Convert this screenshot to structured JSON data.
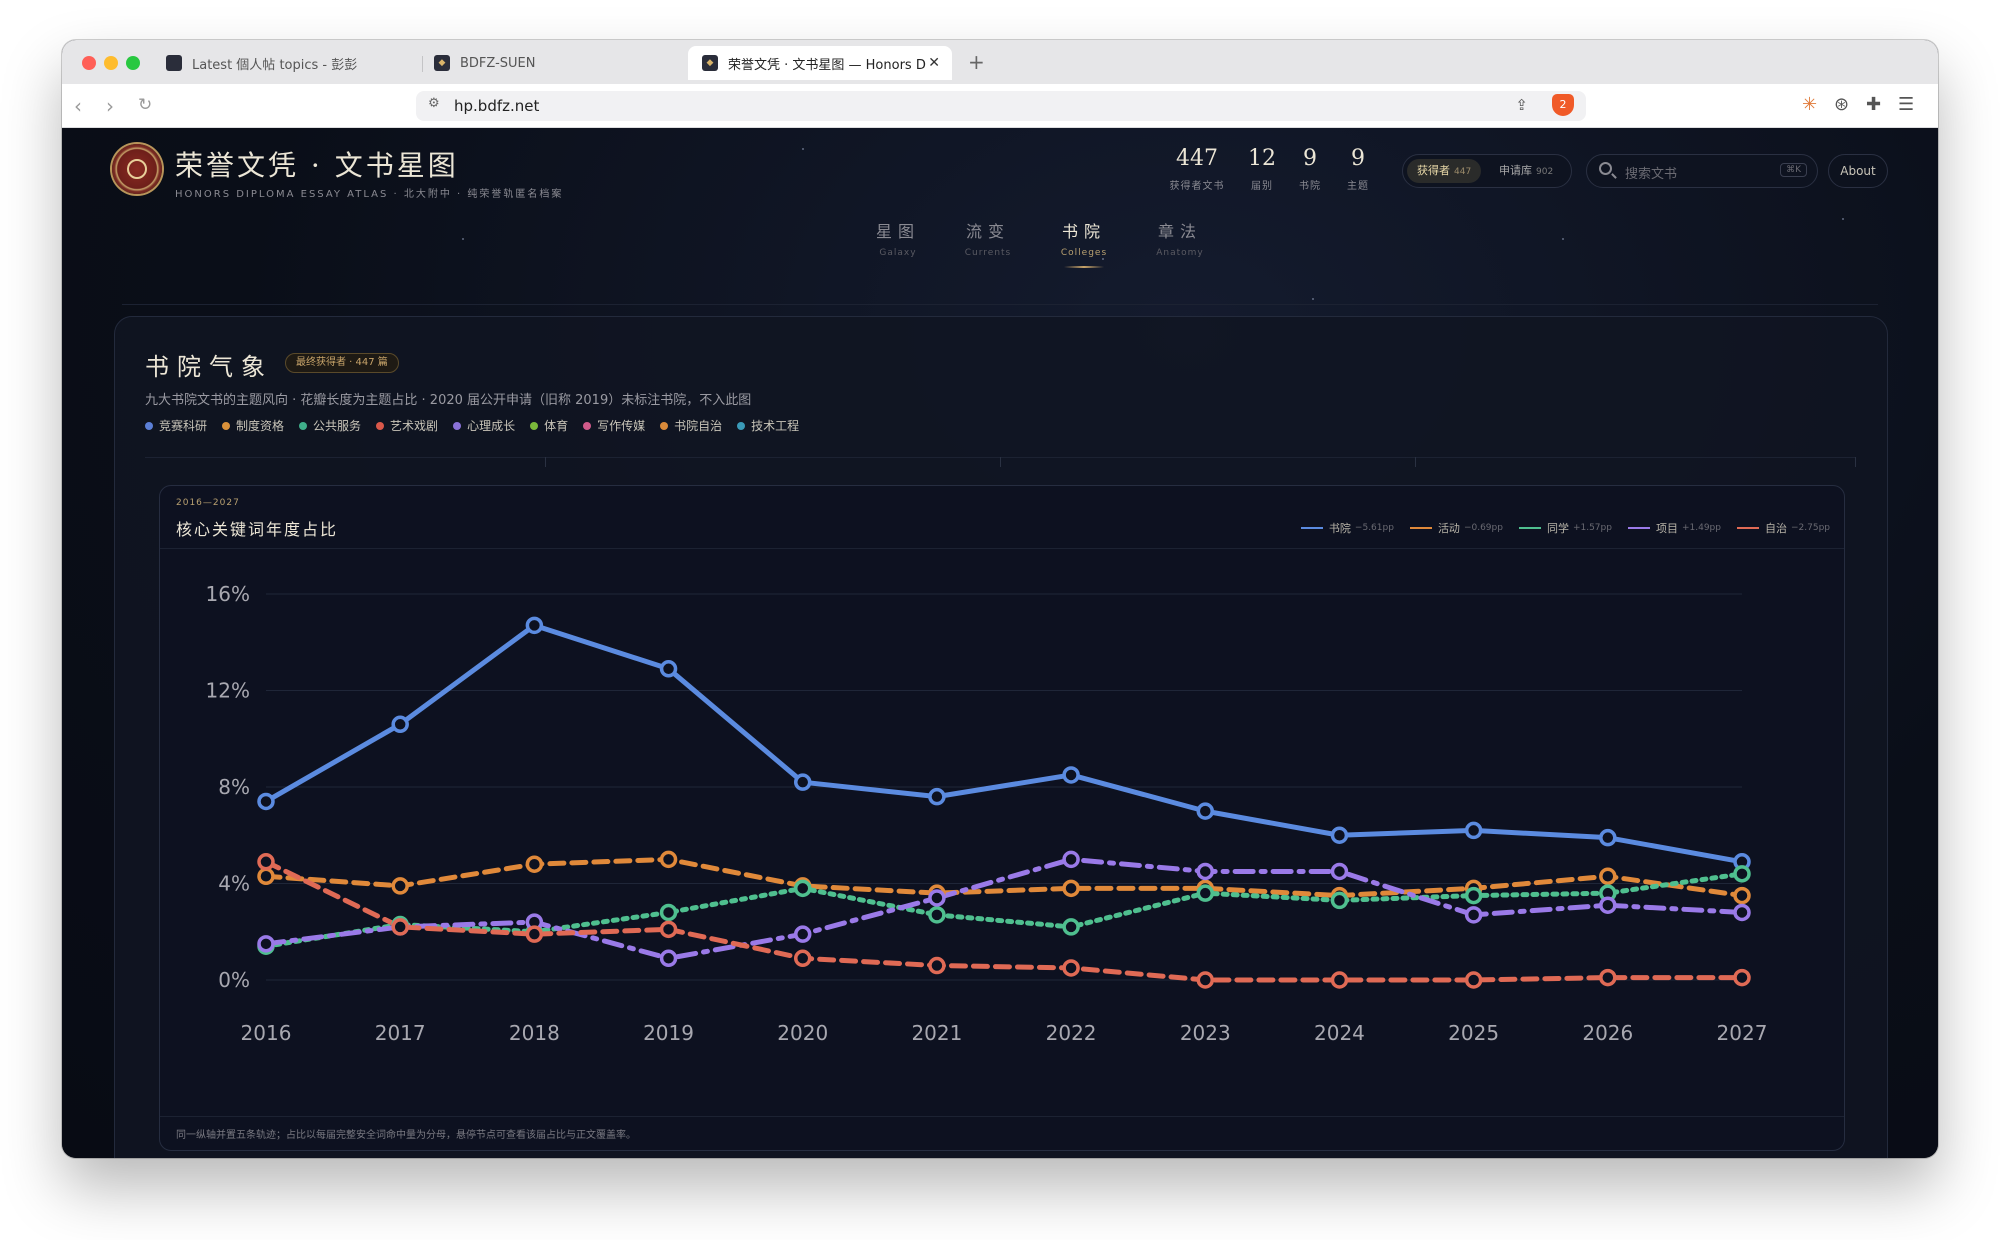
{
  "browser": {
    "tabs": [
      {
        "title": "Latest 個人帖 topics - 彭彭"
      },
      {
        "title": "BDFZ-SUEN"
      },
      {
        "title": "荣誉文凭 · 文书星图 — Honors D"
      }
    ],
    "url": "hp.bdfz.net"
  },
  "header": {
    "title": "荣誉文凭 · 文书星图",
    "subtitle": "HONORS DIPLOMA ESSAY ATLAS · 北大附中 · 纯荣誉轨匿名档案",
    "stats": [
      {
        "value": "447",
        "label": "获得者文书"
      },
      {
        "value": "12",
        "label": "届别"
      },
      {
        "value": "9",
        "label": "书院"
      },
      {
        "value": "9",
        "label": "主题"
      }
    ],
    "toggle": {
      "on_label": "获得者",
      "on_count": "447",
      "off_label": "申请库",
      "off_count": "902"
    },
    "search_placeholder": "搜索文书",
    "search_shortcut": "⌘K",
    "about_label": "About"
  },
  "nav": [
    {
      "zh": "星图",
      "en": "Galaxy"
    },
    {
      "zh": "流变",
      "en": "Currents"
    },
    {
      "zh": "书院",
      "en": "Colleges"
    },
    {
      "zh": "章法",
      "en": "Anatomy"
    }
  ],
  "panel": {
    "title": "书院气象",
    "badge": "最终获得者 · 447 篇",
    "subtitle": "九大书院文书的主题风向 · 花瓣长度为主题占比 · 2020 届公开申请（旧称 2019）未标注书院，不入此图",
    "categories": [
      {
        "label": "竞赛科研",
        "color": "#5b7fd6"
      },
      {
        "label": "制度资格",
        "color": "#d9913a"
      },
      {
        "label": "公共服务",
        "color": "#3fae8a"
      },
      {
        "label": "艺术戏剧",
        "color": "#d9584a"
      },
      {
        "label": "心理成长",
        "color": "#8a72d8"
      },
      {
        "label": "体育",
        "color": "#7ab83a"
      },
      {
        "label": "写作传媒",
        "color": "#d05a8a"
      },
      {
        "label": "书院自治",
        "color": "#d98a3a"
      },
      {
        "label": "技术工程",
        "color": "#3a9ab8"
      }
    ]
  },
  "chart_card": {
    "range": "2016—2027",
    "title": "核心关键词年度占比",
    "legend": [
      {
        "name": "书院",
        "delta": "−5.61pp",
        "color": "#5b8be0"
      },
      {
        "name": "活动",
        "delta": "−0.69pp",
        "color": "#e0893a"
      },
      {
        "name": "同学",
        "delta": "+1.57pp",
        "color": "#4fbf8f"
      },
      {
        "name": "项目",
        "delta": "+1.49pp",
        "color": "#9a7ae8"
      },
      {
        "name": "自治",
        "delta": "−2.75pp",
        "color": "#e06a55"
      }
    ],
    "footnote": "同一纵轴并置五条轨迹；占比以每届完整安全词命中量为分母，悬停节点可查看该届占比与正文覆盖率。"
  },
  "chart_data": {
    "type": "line",
    "title": "核心关键词年度占比",
    "x": [
      "2016",
      "2017",
      "2018",
      "2019",
      "2020",
      "2021",
      "2022",
      "2023",
      "2024",
      "2025",
      "2026",
      "2027"
    ],
    "y_ticks": [
      "0%",
      "4%",
      "8%",
      "12%",
      "16%"
    ],
    "ylim": [
      0,
      16
    ],
    "grid": true,
    "series": [
      {
        "name": "书院",
        "color": "#5b8be0",
        "style": "solid",
        "values": [
          7.4,
          10.6,
          14.7,
          12.9,
          8.2,
          7.6,
          8.5,
          7.0,
          6.0,
          6.2,
          5.9,
          4.9
        ]
      },
      {
        "name": "活动",
        "color": "#e0893a",
        "style": "dashed",
        "values": [
          4.3,
          3.9,
          4.8,
          5.0,
          3.9,
          3.6,
          3.8,
          3.8,
          3.5,
          3.8,
          4.3,
          3.5
        ]
      },
      {
        "name": "同学",
        "color": "#4fbf8f",
        "style": "dotted",
        "values": [
          1.4,
          2.3,
          2.0,
          2.8,
          3.8,
          2.7,
          2.2,
          3.6,
          3.3,
          3.5,
          3.6,
          4.4
        ]
      },
      {
        "name": "项目",
        "color": "#9a7ae8",
        "style": "dashdot",
        "values": [
          1.5,
          2.2,
          2.4,
          0.9,
          1.9,
          3.4,
          5.0,
          4.5,
          4.5,
          2.7,
          3.1,
          2.8
        ]
      },
      {
        "name": "自治",
        "color": "#e06a55",
        "style": "dashed",
        "values": [
          4.9,
          2.2,
          1.9,
          2.1,
          0.9,
          0.6,
          0.5,
          0.0,
          0.0,
          0.0,
          0.1,
          0.1
        ]
      }
    ]
  }
}
